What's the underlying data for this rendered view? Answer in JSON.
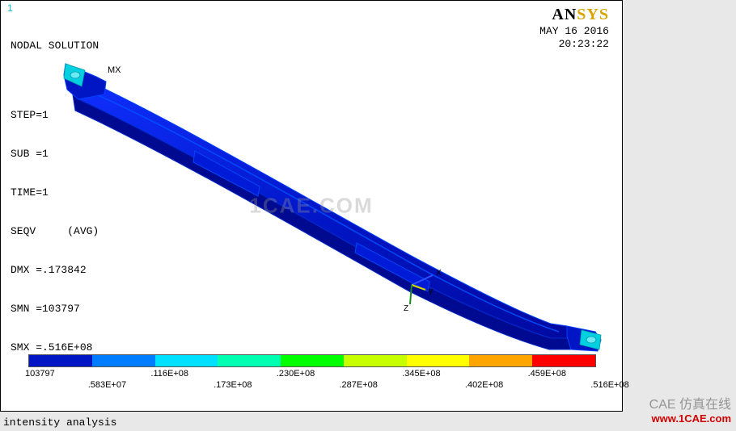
{
  "frame": {
    "corner_number": "1",
    "nodal_solution": "NODAL SOLUTION",
    "step_line": "STEP=1",
    "sub_line": "SUB =1",
    "time_line": "TIME=1",
    "seqv_line": "SEQV     (AVG)",
    "dmx_line": "DMX =.173842",
    "smn_line": "SMN =103797",
    "smx_line": "SMX =.516E+08",
    "mx_label": "MX"
  },
  "logo": {
    "an": "AN",
    "sys": "SYS"
  },
  "date": {
    "line1": "MAY 16 2016",
    "line2": "20:23:22"
  },
  "legend": {
    "colors": [
      "#0015c4",
      "#007dff",
      "#00e0ff",
      "#00ffb0",
      "#00ff00",
      "#c8ff00",
      "#ffff00",
      "#ffa500",
      "#ff0000"
    ],
    "labels_top": [
      "103797",
      ".116E+08",
      ".230E+08",
      ".345E+08",
      ".459E+08"
    ],
    "labels_bot": [
      ".583E+07",
      ".173E+08",
      ".287E+08",
      ".402E+08",
      ".516E+08"
    ],
    "top_positions_pct": [
      0,
      22.2,
      44.4,
      66.6,
      88.8
    ],
    "bot_positions_pct": [
      11.1,
      33.3,
      55.5,
      77.7,
      99.9
    ]
  },
  "bottom_title": "intensity analysis",
  "overlay": {
    "center": "1CAE.COM",
    "brand": "CAE 仿真在线",
    "link": "www.1CAE.com"
  },
  "model": {
    "body_fill": "#0015c4",
    "body_edge": "#0030ff",
    "tip_fill": "#00d0e0",
    "triad": {
      "x_color": "#3050ff",
      "y_color": "#d8d800",
      "z_color": "#20a020",
      "x_label": "X",
      "y_label": "Y",
      "z_label": "Z"
    }
  }
}
